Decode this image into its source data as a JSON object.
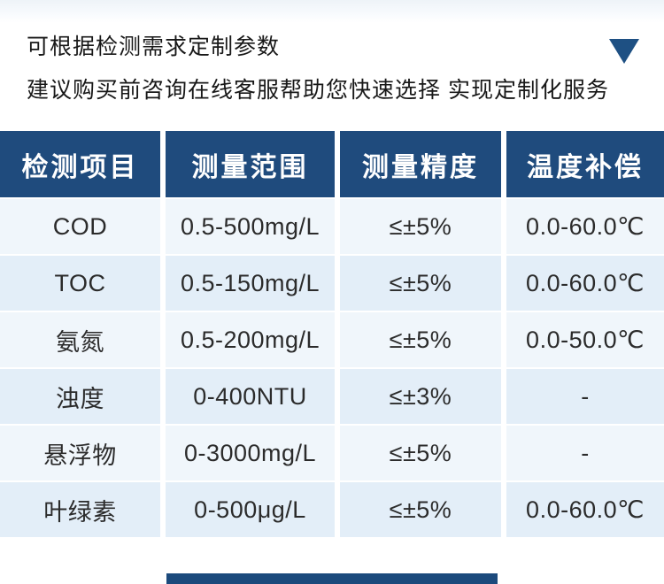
{
  "intro": {
    "line1": "可根据检测需求定制参数",
    "line2": "建议购买前咨询在线客服帮助您快速选择 实现定制化服务",
    "accent_color": "#1E5083"
  },
  "table": {
    "headers": [
      "检测项目",
      "测量范围",
      "测量精度",
      "温度补偿"
    ],
    "rows": [
      [
        "COD",
        "0.5-500mg/L",
        "≤±5%",
        "0.0-60.0℃"
      ],
      [
        "TOC",
        "0.5-150mg/L",
        "≤±5%",
        "0.0-60.0℃"
      ],
      [
        "氨氮",
        "0.5-200mg/L",
        "≤±5%",
        "0.0-50.0℃"
      ],
      [
        "浊度",
        "0-400NTU",
        "≤±3%",
        "-"
      ],
      [
        "悬浮物",
        "0-3000mg/L",
        "≤±5%",
        "-"
      ],
      [
        "叶绿素",
        "0-500μg/L",
        "≤±5%",
        "0.0-60.0℃"
      ]
    ],
    "colors": {
      "header_bg": "#1F4B7D",
      "row_light": "#F0F6FB",
      "row_dark": "#E3EEF8",
      "header_text": "#FFFFFF",
      "cell_text": "#2B2B2B"
    }
  },
  "footer": {
    "bar_color": "#1C4A7C"
  }
}
